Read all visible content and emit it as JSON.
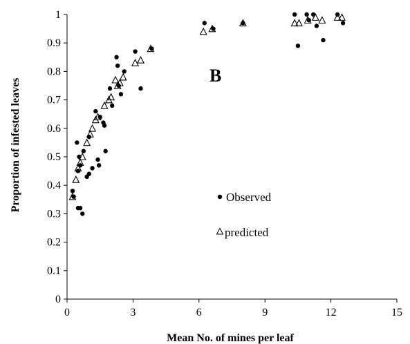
{
  "chart_data": {
    "type": "scatter",
    "panel_label": "B",
    "xlabel": "Mean No. of  mines per leaf",
    "ylabel": "Proportion of infested  leaves",
    "xlim": [
      0,
      15
    ],
    "ylim": [
      0,
      1
    ],
    "x_ticks": [
      0,
      3,
      6,
      9,
      12,
      15
    ],
    "y_ticks": [
      0,
      0.1,
      0.2,
      0.3,
      0.4,
      0.5,
      0.6,
      0.7,
      0.8,
      0.9,
      1
    ],
    "y_tick_labels": [
      "0",
      "0.1",
      "0.2",
      "0.3",
      "0.4",
      "0.5",
      "0.6",
      "0.7",
      "0.8",
      "0.9",
      "1"
    ],
    "grid": false,
    "legend_position": "center-left",
    "series": [
      {
        "name": "Observed",
        "marker": "filled-circle",
        "color": "#000000",
        "points": [
          [
            0.25,
            0.38
          ],
          [
            0.3,
            0.36
          ],
          [
            0.45,
            0.55
          ],
          [
            0.5,
            0.32
          ],
          [
            0.5,
            0.45
          ],
          [
            0.55,
            0.5
          ],
          [
            0.6,
            0.47
          ],
          [
            0.6,
            0.32
          ],
          [
            0.7,
            0.3
          ],
          [
            0.75,
            0.52
          ],
          [
            0.9,
            0.43
          ],
          [
            1.0,
            0.44
          ],
          [
            1.0,
            0.57
          ],
          [
            1.15,
            0.46
          ],
          [
            1.3,
            0.66
          ],
          [
            1.4,
            0.49
          ],
          [
            1.45,
            0.47
          ],
          [
            1.5,
            0.64
          ],
          [
            1.65,
            0.62
          ],
          [
            1.7,
            0.61
          ],
          [
            1.75,
            0.52
          ],
          [
            1.95,
            0.74
          ],
          [
            2.05,
            0.68
          ],
          [
            2.25,
            0.85
          ],
          [
            2.3,
            0.82
          ],
          [
            2.35,
            0.75
          ],
          [
            2.45,
            0.72
          ],
          [
            2.6,
            0.8
          ],
          [
            3.1,
            0.87
          ],
          [
            3.35,
            0.74
          ],
          [
            3.85,
            0.88
          ],
          [
            6.25,
            0.97
          ],
          [
            6.65,
            0.95
          ],
          [
            8.0,
            0.97
          ],
          [
            10.35,
            1.0
          ],
          [
            10.5,
            0.89
          ],
          [
            10.9,
            1.0
          ],
          [
            11.0,
            0.98
          ],
          [
            11.2,
            1.0
          ],
          [
            11.35,
            0.96
          ],
          [
            11.65,
            0.91
          ],
          [
            12.3,
            1.0
          ],
          [
            12.55,
            0.97
          ]
        ]
      },
      {
        "name": "predicted",
        "marker": "open-triangle",
        "color": "#000000",
        "points": [
          [
            0.25,
            0.36
          ],
          [
            0.4,
            0.42
          ],
          [
            0.5,
            0.46
          ],
          [
            0.6,
            0.48
          ],
          [
            0.7,
            0.5
          ],
          [
            0.9,
            0.55
          ],
          [
            1.05,
            0.58
          ],
          [
            1.15,
            0.6
          ],
          [
            1.3,
            0.63
          ],
          [
            1.4,
            0.64
          ],
          [
            1.7,
            0.68
          ],
          [
            1.9,
            0.7
          ],
          [
            2.0,
            0.71
          ],
          [
            2.2,
            0.77
          ],
          [
            2.3,
            0.75
          ],
          [
            2.4,
            0.76
          ],
          [
            2.55,
            0.78
          ],
          [
            3.1,
            0.83
          ],
          [
            3.35,
            0.84
          ],
          [
            3.8,
            0.88
          ],
          [
            6.2,
            0.94
          ],
          [
            6.6,
            0.95
          ],
          [
            8.0,
            0.97
          ],
          [
            10.35,
            0.97
          ],
          [
            10.55,
            0.97
          ],
          [
            10.95,
            0.98
          ],
          [
            11.3,
            0.99
          ],
          [
            11.6,
            0.98
          ],
          [
            12.3,
            0.99
          ],
          [
            12.5,
            0.99
          ]
        ]
      }
    ]
  }
}
